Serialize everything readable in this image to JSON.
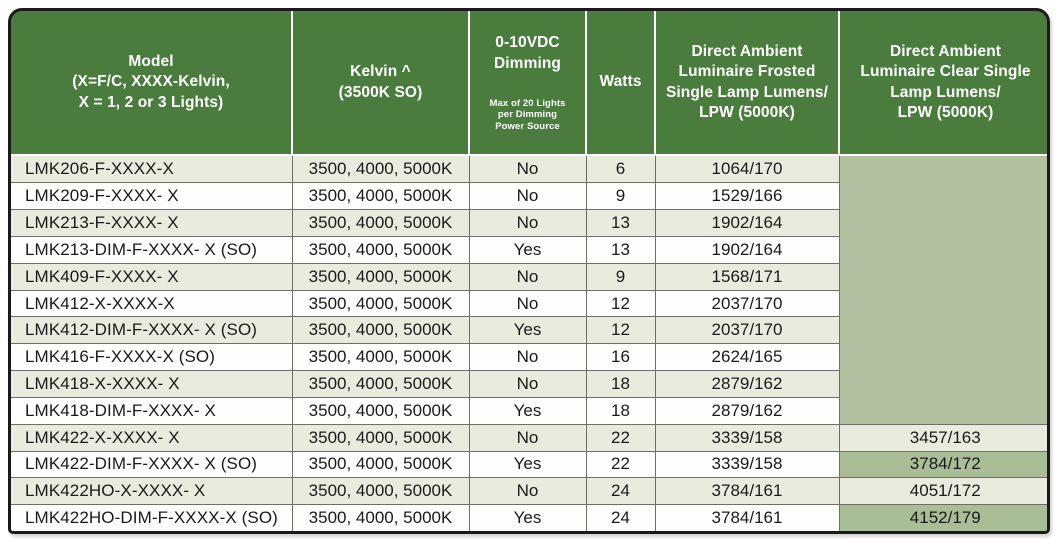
{
  "table": {
    "colors": {
      "header_bg": "#4a7c3e",
      "stripe_bg": "#e9ebdf",
      "white_bg": "#fefefe",
      "merged_bg": "#b3c1a0",
      "highlight_bg": "#a9bd97",
      "grid_border": "#6e6e66",
      "outer_border": "#1a1a1a",
      "header_text": "#ffffff",
      "body_text": "#1a1a1a"
    },
    "headers": {
      "model": "Model\n(X=F/C, XXXX-Kelvin,\nX = 1, 2 or 3 Lights)",
      "kelvin": "Kelvin ^\n(3500K SO)",
      "dimming_title": "0-10VDC\nDimming",
      "dimming_note": "Max of 20 Lights\nper Dimming\nPower Source",
      "watts": "Watts",
      "frosted": "Direct Ambient\nLuminaire Frosted\nSingle Lamp Lumens/\nLPW (5000K)",
      "clear": "Direct Ambient\nLuminaire Clear Single\nLamp Lumens/\nLPW (5000K)"
    },
    "rows": [
      {
        "model": "LMK206-F-XXXX-X",
        "kelvin": "3500, 4000, 5000K",
        "dimming": "No",
        "watts": "6",
        "frosted": "1064/170",
        "clear": "",
        "clear_highlight": false
      },
      {
        "model": "LMK209-F-XXXX- X",
        "kelvin": "3500, 4000, 5000K",
        "dimming": "No",
        "watts": "9",
        "frosted": "1529/166",
        "clear": "",
        "clear_highlight": false
      },
      {
        "model": "LMK213-F-XXXX- X",
        "kelvin": "3500, 4000, 5000K",
        "dimming": "No",
        "watts": "13",
        "frosted": "1902/164",
        "clear": "",
        "clear_highlight": false
      },
      {
        "model": "LMK213-DIM-F-XXXX- X (SO)",
        "kelvin": "3500, 4000, 5000K",
        "dimming": "Yes",
        "watts": "13",
        "frosted": "1902/164",
        "clear": "",
        "clear_highlight": false
      },
      {
        "model": "LMK409-F-XXXX- X",
        "kelvin": "3500, 4000, 5000K",
        "dimming": "No",
        "watts": "9",
        "frosted": "1568/171",
        "clear": "",
        "clear_highlight": false
      },
      {
        "model": "LMK412-X-XXXX-X",
        "kelvin": "3500, 4000, 5000K",
        "dimming": "No",
        "watts": "12",
        "frosted": "2037/170",
        "clear": "",
        "clear_highlight": false
      },
      {
        "model": "LMK412-DIM-F-XXXX- X (SO)",
        "kelvin": "3500, 4000, 5000K",
        "dimming": "Yes",
        "watts": "12",
        "frosted": "2037/170",
        "clear": "",
        "clear_highlight": false
      },
      {
        "model": "LMK416-F-XXXX-X (SO)",
        "kelvin": "3500, 4000, 5000K",
        "dimming": "No",
        "watts": "16",
        "frosted": "2624/165",
        "clear": "",
        "clear_highlight": false
      },
      {
        "model": "LMK418-X-XXXX- X",
        "kelvin": "3500, 4000, 5000K",
        "dimming": "No",
        "watts": "18",
        "frosted": "2879/162",
        "clear": "",
        "clear_highlight": false
      },
      {
        "model": "LMK418-DIM-F-XXXX- X",
        "kelvin": "3500, 4000, 5000K",
        "dimming": "Yes",
        "watts": "18",
        "frosted": "2879/162",
        "clear": "",
        "clear_highlight": false
      },
      {
        "model": "LMK422-X-XXXX- X",
        "kelvin": "3500, 4000, 5000K",
        "dimming": "No",
        "watts": "22",
        "frosted": "3339/158",
        "clear": "3457/163",
        "clear_highlight": false
      },
      {
        "model": "LMK422-DIM-F-XXXX- X (SO)",
        "kelvin": "3500, 4000, 5000K",
        "dimming": "Yes",
        "watts": "22",
        "frosted": "3339/158",
        "clear": "3784/172",
        "clear_highlight": true
      },
      {
        "model": "LMK422HO-X-XXXX- X",
        "kelvin": "3500, 4000, 5000K",
        "dimming": "No",
        "watts": "24",
        "frosted": "3784/161",
        "clear": "4051/172",
        "clear_highlight": false
      },
      {
        "model": "LMK422HO-DIM-F-XXXX-X (SO)",
        "kelvin": "3500, 4000, 5000K",
        "dimming": "Yes",
        "watts": "24",
        "frosted": "3784/161",
        "clear": "4152/179",
        "clear_highlight": true
      }
    ]
  }
}
